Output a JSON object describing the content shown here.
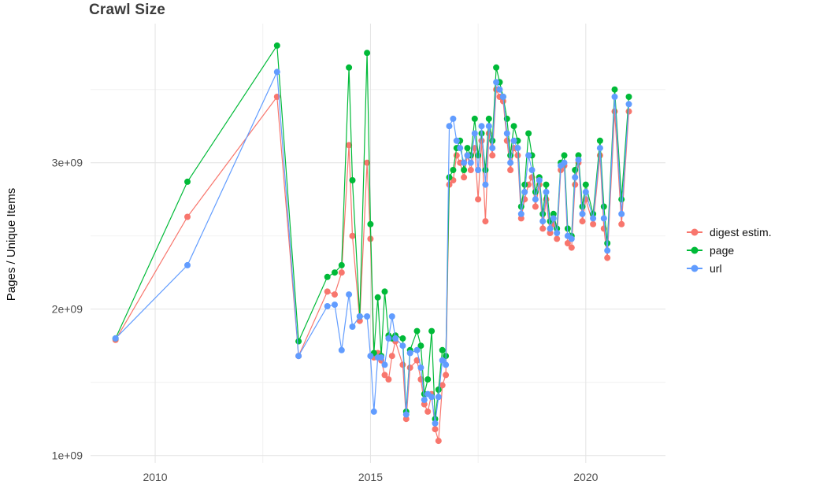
{
  "title": "Crawl Size",
  "ylabel": "Pages / Unique Items",
  "legend": {
    "items": [
      {
        "label": "digest estim.",
        "color": "#F8766D"
      },
      {
        "label": "page",
        "color": "#00BA38"
      },
      {
        "label": "url",
        "color": "#619CFF"
      }
    ]
  },
  "chart_data": {
    "type": "line",
    "title": "Crawl Size",
    "xlabel": "",
    "ylabel": "Pages / Unique Items",
    "y_unit": "items, values in billions (1e9)",
    "grid": true,
    "legend_position": "right",
    "xlim": [
      2008.5,
      2021.85
    ],
    "ylim": [
      0.95,
      3.95
    ],
    "x_ticks": {
      "values": [
        2010,
        2015,
        2020
      ],
      "labels": [
        "2010",
        "2015",
        "2020"
      ]
    },
    "x_minor": [
      2012.5,
      2017.5
    ],
    "y_ticks": {
      "values": [
        1,
        2,
        3
      ],
      "labels": [
        "1e+09",
        "2e+09",
        "3e+09"
      ]
    },
    "y_minor": [
      1.5,
      2.5,
      3.5
    ],
    "x": [
      2009.08,
      2010.75,
      2012.83,
      2013.33,
      2014.0,
      2014.17,
      2014.33,
      2014.5,
      2014.58,
      2014.75,
      2014.92,
      2015.0,
      2015.08,
      2015.17,
      2015.25,
      2015.33,
      2015.42,
      2015.5,
      2015.58,
      2015.75,
      2015.83,
      2015.92,
      2016.08,
      2016.17,
      2016.25,
      2016.33,
      2016.42,
      2016.5,
      2016.58,
      2016.67,
      2016.75,
      2016.83,
      2016.92,
      2017.0,
      2017.08,
      2017.17,
      2017.25,
      2017.33,
      2017.42,
      2017.5,
      2017.58,
      2017.67,
      2017.75,
      2017.83,
      2017.92,
      2018.0,
      2018.08,
      2018.17,
      2018.25,
      2018.33,
      2018.42,
      2018.5,
      2018.58,
      2018.67,
      2018.75,
      2018.83,
      2018.92,
      2019.0,
      2019.08,
      2019.17,
      2019.25,
      2019.33,
      2019.42,
      2019.5,
      2019.58,
      2019.67,
      2019.75,
      2019.83,
      2019.92,
      2020.0,
      2020.17,
      2020.33,
      2020.42,
      2020.5,
      2020.67,
      2020.83,
      2021.0
    ],
    "series": [
      {
        "name": "digest estim.",
        "color": "#F8766D",
        "values": [
          1.79,
          2.63,
          3.45,
          1.68,
          2.12,
          2.1,
          2.25,
          3.12,
          2.5,
          1.92,
          3.0,
          2.48,
          1.67,
          1.7,
          1.65,
          1.55,
          1.52,
          1.68,
          1.78,
          1.62,
          1.25,
          1.6,
          1.65,
          1.52,
          1.35,
          1.3,
          1.42,
          1.18,
          1.1,
          1.48,
          1.55,
          2.85,
          2.88,
          3.05,
          3.0,
          2.9,
          3.05,
          2.95,
          3.1,
          2.75,
          3.15,
          2.6,
          3.2,
          3.05,
          3.5,
          3.45,
          3.42,
          3.15,
          2.95,
          3.1,
          3.05,
          2.62,
          2.75,
          2.85,
          2.9,
          2.7,
          2.85,
          2.55,
          2.75,
          2.52,
          2.58,
          2.48,
          2.95,
          2.98,
          2.45,
          2.42,
          2.85,
          3.0,
          2.6,
          2.75,
          2.58,
          3.05,
          2.55,
          2.35,
          3.35,
          2.58,
          3.35
        ]
      },
      {
        "name": "page",
        "color": "#00BA38",
        "values": [
          1.8,
          2.87,
          3.8,
          1.78,
          2.22,
          2.25,
          2.3,
          3.65,
          2.88,
          1.95,
          3.75,
          2.58,
          1.7,
          2.08,
          1.68,
          2.12,
          1.82,
          1.8,
          1.82,
          1.8,
          1.3,
          1.72,
          1.85,
          1.75,
          1.42,
          1.52,
          1.85,
          1.25,
          1.45,
          1.72,
          1.68,
          2.9,
          2.95,
          3.1,
          3.15,
          2.95,
          3.1,
          3.05,
          3.3,
          3.05,
          3.2,
          2.95,
          3.3,
          3.15,
          3.65,
          3.55,
          3.45,
          3.3,
          3.05,
          3.25,
          3.15,
          2.7,
          2.85,
          3.2,
          3.05,
          2.8,
          2.9,
          2.65,
          2.85,
          2.6,
          2.65,
          2.55,
          3.0,
          3.05,
          2.55,
          2.5,
          2.95,
          3.05,
          2.7,
          2.85,
          2.65,
          3.15,
          2.7,
          2.45,
          3.5,
          2.75,
          3.45
        ]
      },
      {
        "name": "url",
        "color": "#619CFF",
        "values": [
          1.8,
          2.3,
          3.62,
          1.68,
          2.02,
          2.03,
          1.72,
          2.1,
          1.88,
          1.95,
          1.95,
          1.68,
          1.3,
          1.67,
          1.67,
          1.62,
          1.8,
          1.95,
          1.8,
          1.75,
          1.28,
          1.7,
          1.72,
          1.6,
          1.38,
          1.42,
          1.4,
          1.22,
          1.4,
          1.65,
          1.62,
          3.25,
          3.3,
          3.15,
          3.1,
          3.0,
          3.05,
          3.0,
          3.2,
          2.95,
          3.25,
          2.85,
          3.25,
          3.1,
          3.55,
          3.5,
          3.45,
          3.2,
          3.0,
          3.15,
          3.1,
          2.65,
          2.8,
          3.05,
          2.95,
          2.75,
          2.88,
          2.6,
          2.8,
          2.55,
          2.62,
          2.52,
          2.98,
          3.0,
          2.5,
          2.48,
          2.9,
          3.02,
          2.65,
          2.8,
          2.62,
          3.1,
          2.62,
          2.4,
          3.45,
          2.65,
          3.4
        ]
      }
    ]
  },
  "style": {
    "grid_major_color": "#e3e3e3",
    "grid_minor_color": "#f1f1f1",
    "tick_label_color": "#4d4d4d"
  }
}
